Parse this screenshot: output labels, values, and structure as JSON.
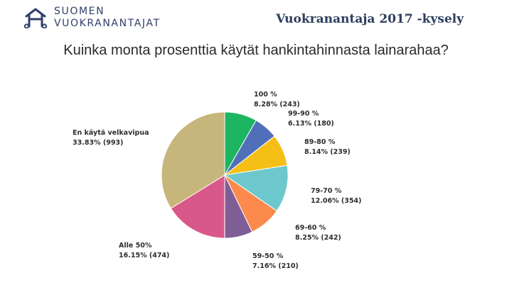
{
  "header": {
    "logo_line1": "SUOMEN",
    "logo_line2": "VUOKRANANTAJAT",
    "survey_title": "Vuokranantaja 2017 -kysely"
  },
  "question": "Kuinka monta prosenttia käytät hankintahinnasta lainarahaa?",
  "colors": {
    "logo": "#32406a",
    "title": "#2c3d5c"
  },
  "chart_data": {
    "type": "pie",
    "slices": [
      {
        "label": "100 %",
        "detail": "8.28% (243)",
        "percent": 8.28,
        "count": 243,
        "color": "#1db561"
      },
      {
        "label": "99-90 %",
        "detail": "6.13% (180)",
        "percent": 6.13,
        "count": 180,
        "color": "#4f6fb8"
      },
      {
        "label": "89-80 %",
        "detail": "8.14% (239)",
        "percent": 8.14,
        "count": 239,
        "color": "#f5bf16"
      },
      {
        "label": "79-70 %",
        "detail": "12.06% (354)",
        "percent": 12.06,
        "count": 354,
        "color": "#6cc8cc"
      },
      {
        "label": "69-60 %",
        "detail": "8.25% (242)",
        "percent": 8.25,
        "count": 242,
        "color": "#fb8a4c"
      },
      {
        "label": "59-50 %",
        "detail": "7.16% (210)",
        "percent": 7.16,
        "count": 210,
        "color": "#7f5e96"
      },
      {
        "label": "Alle 50%",
        "detail": "16.15% (474)",
        "percent": 16.15,
        "count": 474,
        "color": "#d9588a"
      },
      {
        "label": "En käytä velkavipua",
        "detail": "33.83% (993)",
        "percent": 33.83,
        "count": 993,
        "color": "#c7b67c"
      }
    ]
  }
}
